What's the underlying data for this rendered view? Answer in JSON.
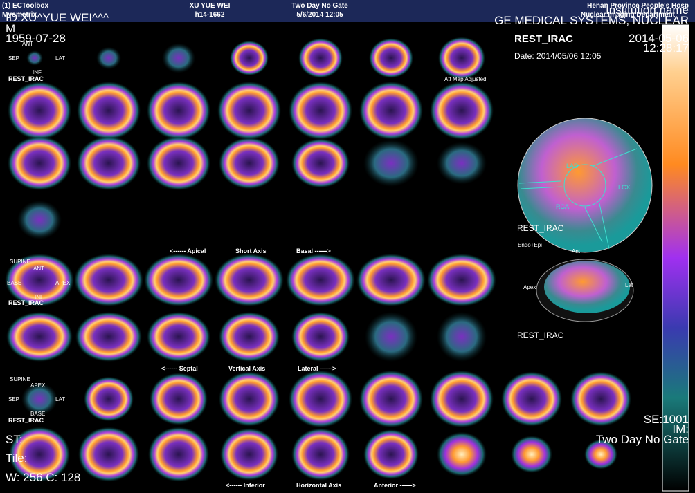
{
  "header": {
    "app": "(1) ECToolbox",
    "module": "Myometrix",
    "patient": "XU YUE WEI",
    "patient_id": "h14-1662",
    "protocol": "Two Day No Gate",
    "datetime": "5/6/2014 12:05",
    "hospital": "Henan Province People's Hosp",
    "department": "Nuclear Imaging Department"
  },
  "overlay": {
    "id": "ID:XU^YUE WEI^^^",
    "sex": "M",
    "birth_date": "1959-07-28",
    "institution": "Institution name",
    "manufacturer": "GE MEDICAL SYSTEMS, NUCLEAR",
    "series": "REST_IRAC",
    "study_date": "2014-05-06",
    "study_time": "12:28:17",
    "date_line": "Date: 2014/05/06 12:05",
    "se": "SE:1001",
    "im": "IM:",
    "protocol": "Two Day No Gate",
    "st": "ST:",
    "tile": "Tile:",
    "window": "W: 256  C: 128"
  },
  "short_axis": {
    "ant": "ANT",
    "sep": "SEP",
    "lat": "LAT",
    "inf": "INF",
    "label": "REST_IRAC",
    "note": "Att Map Adjusted",
    "axis_left": "<------ Apical",
    "axis_name": "Short Axis",
    "axis_right": "Basal ------>"
  },
  "vertical_axis": {
    "position": "SUPINE",
    "ant": "ANT",
    "base": "BASE",
    "apex": "APEX",
    "inf": "INF",
    "label": "REST_IRAC",
    "axis_left": "<------ Septal",
    "axis_name": "Vertical Axis",
    "axis_right": "Lateral ------>"
  },
  "horizontal_axis": {
    "position": "SUPINE",
    "apex": "APEX",
    "sep": "SEP",
    "lat": "LAT",
    "base": "BASE",
    "label": "REST_IRAC",
    "axis_left": "<------ Inferior",
    "axis_name": "Horizontal Axis",
    "axis_right": "Anterior ------>"
  },
  "polar_map": {
    "lad": "LAD",
    "lcx": "LCX",
    "rca": "RCA",
    "label": "REST_IRAC"
  },
  "surface": {
    "mode": "Endo+Epi",
    "ant": "Ant",
    "apex": "Apex",
    "lat": "Lat",
    "label": "REST_IRAC"
  }
}
